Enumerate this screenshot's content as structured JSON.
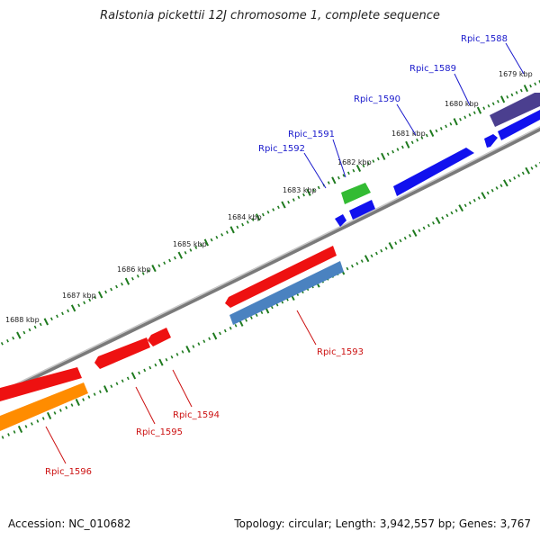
{
  "title": "Ralstonia pickettii 12J chromosome 1, complete sequence",
  "footer": {
    "accession": "Accession: NC_010682",
    "stats": "Topology: circular; Length: 3,942,557 bp; Genes: 3,767"
  },
  "colors": {
    "backbone": "#8a8a8a",
    "tick_major": "#1e7a1e",
    "forward_label": "#1a1acc",
    "reverse_label": "#cc1111",
    "gene_red": "#ee1111",
    "gene_blue": "#1111ee",
    "gene_steelblue": "#4a82c0",
    "gene_orange": "#ff8c00",
    "gene_green": "#33bb33",
    "gene_purple": "#4b3f8f"
  },
  "tick_labels": [
    "1679 kbp",
    "1680 kbp",
    "1681 kbp",
    "1682 kbp",
    "1683 kbp",
    "1684 kbp",
    "1685 kbp",
    "1686 kbp",
    "1687 kbp",
    "1688 kbp"
  ],
  "gene_labels": {
    "forward": [
      "Rpic_1588",
      "Rpic_1589",
      "Rpic_1590",
      "Rpic_1591",
      "Rpic_1592"
    ],
    "reverse": [
      "Rpic_1593",
      "Rpic_1594",
      "Rpic_1595",
      "Rpic_1596"
    ]
  }
}
